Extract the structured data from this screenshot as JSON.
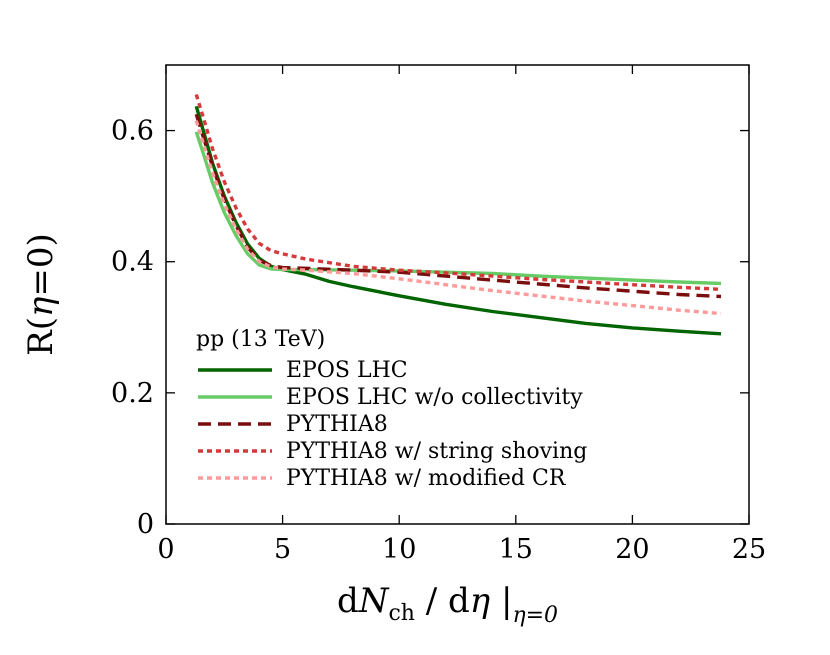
{
  "chart_data": {
    "type": "line",
    "xlabel": {
      "main": "d",
      "n_var": "N",
      "n_sub": "ch",
      "slash": " / d",
      "eta": "η",
      "bar": " |",
      "bar_sub": "η=0"
    },
    "ylabel": {
      "pre": "R(",
      "eta": "η",
      "post": "=0)"
    },
    "xlim": [
      0,
      25
    ],
    "ylim": [
      0,
      0.7
    ],
    "x_ticks": [
      0,
      5,
      10,
      15,
      20,
      25
    ],
    "x_tick_labels": [
      "0",
      "5",
      "10",
      "15",
      "20",
      "25"
    ],
    "y_ticks": [
      0,
      0.2,
      0.4,
      0.6
    ],
    "y_tick_labels": [
      "0",
      "0.2",
      "0.4",
      "0.6"
    ],
    "grid": false,
    "legend_title": "pp (13 TeV)",
    "legend_position": "lower-left",
    "series": [
      {
        "name": "EPOS LHC",
        "color": "#006400",
        "style": "solid",
        "x": [
          1.3,
          1.6,
          2.0,
          2.5,
          3.0,
          3.5,
          4.0,
          4.5,
          5.0,
          6.0,
          7.0,
          8.0,
          10.0,
          12.0,
          14.0,
          16.0,
          18.0,
          20.0,
          22.0,
          23.8
        ],
        "y": [
          0.637,
          0.6,
          0.55,
          0.5,
          0.46,
          0.427,
          0.405,
          0.393,
          0.388,
          0.381,
          0.37,
          0.362,
          0.348,
          0.335,
          0.324,
          0.315,
          0.306,
          0.299,
          0.294,
          0.29
        ]
      },
      {
        "name": "EPOS LHC w/o collectivity",
        "color": "#66cc66",
        "style": "solid",
        "x": [
          1.3,
          1.6,
          2.0,
          2.5,
          3.0,
          3.5,
          4.0,
          4.5,
          5.0,
          6.0,
          8.0,
          10.0,
          12.0,
          14.0,
          16.0,
          18.0,
          20.0,
          22.0,
          23.8
        ],
        "y": [
          0.598,
          0.565,
          0.52,
          0.475,
          0.44,
          0.412,
          0.395,
          0.389,
          0.388,
          0.388,
          0.387,
          0.386,
          0.384,
          0.382,
          0.378,
          0.375,
          0.372,
          0.369,
          0.367
        ]
      },
      {
        "name": "PYTHIA8",
        "color": "#7a0d0d",
        "style": "dashed",
        "x": [
          1.3,
          1.6,
          2.0,
          2.5,
          3.0,
          3.5,
          4.0,
          4.5,
          5.0,
          6.0,
          8.0,
          10.0,
          12.0,
          14.0,
          16.0,
          18.0,
          20.0,
          22.0,
          23.8
        ],
        "y": [
          0.625,
          0.59,
          0.545,
          0.495,
          0.455,
          0.422,
          0.402,
          0.394,
          0.391,
          0.39,
          0.387,
          0.384,
          0.378,
          0.372,
          0.366,
          0.36,
          0.355,
          0.35,
          0.347
        ]
      },
      {
        "name": "PYTHIA8 w/ string shoving",
        "color": "#d43a3a",
        "style": "dotted",
        "x": [
          1.3,
          1.6,
          2.0,
          2.5,
          3.0,
          3.5,
          4.0,
          4.5,
          5.0,
          6.0,
          8.0,
          10.0,
          12.0,
          14.0,
          16.0,
          18.0,
          20.0,
          22.0,
          23.8
        ],
        "y": [
          0.655,
          0.62,
          0.572,
          0.522,
          0.482,
          0.45,
          0.428,
          0.417,
          0.412,
          0.404,
          0.393,
          0.387,
          0.383,
          0.378,
          0.373,
          0.369,
          0.365,
          0.361,
          0.358
        ]
      },
      {
        "name": "PYTHIA8 w/ modified CR",
        "color": "#ff9a9a",
        "style": "dotted",
        "x": [
          1.3,
          1.6,
          2.0,
          2.5,
          3.0,
          3.5,
          4.0,
          4.5,
          5.0,
          6.0,
          8.0,
          10.0,
          12.0,
          14.0,
          16.0,
          18.0,
          20.0,
          22.0,
          23.8
        ],
        "y": [
          0.615,
          0.58,
          0.535,
          0.488,
          0.45,
          0.419,
          0.4,
          0.392,
          0.389,
          0.387,
          0.382,
          0.374,
          0.365,
          0.356,
          0.348,
          0.34,
          0.333,
          0.326,
          0.321
        ]
      }
    ]
  }
}
